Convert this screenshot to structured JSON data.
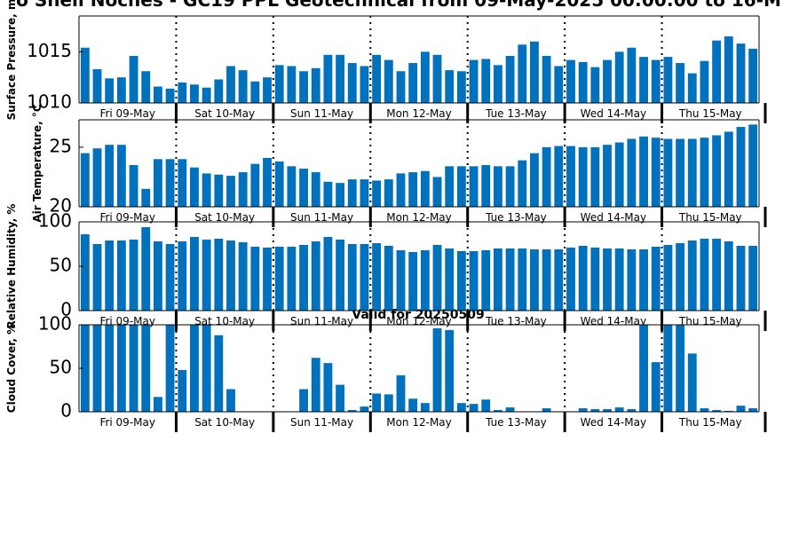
{
  "title": "o Shell Noches - GC19 PPL Geotechnical from 09-May-2025 00:00:00 to 16-M",
  "subtitle": "Valid for 20250509",
  "colors": {
    "bar": "#0072bd",
    "axis": "#000000",
    "divider": "#000000"
  },
  "day_labels": [
    "Fri 09-May",
    "Sat 10-May",
    "Sun 11-May",
    "Mon 12-May",
    "Tue 13-May",
    "Wed 14-May",
    "Thu 15-May"
  ],
  "chart_data": [
    {
      "type": "bar",
      "ylabel": "Surface Pressure, m",
      "ylim": [
        1010,
        1018.5
      ],
      "yticks": [
        1010,
        1015
      ],
      "grid": false,
      "values": [
        1015.4,
        1013.3,
        1012.4,
        1012.5,
        1014.6,
        1013.1,
        1011.6,
        1011.4,
        1012.0,
        1011.8,
        1011.5,
        1012.3,
        1013.6,
        1013.2,
        1012.1,
        1012.5,
        1013.7,
        1013.6,
        1013.1,
        1013.4,
        1014.7,
        1014.7,
        1013.9,
        1013.6,
        1014.7,
        1014.2,
        1013.1,
        1013.9,
        1015.0,
        1014.7,
        1013.2,
        1013.1,
        1014.2,
        1014.3,
        1013.7,
        1014.6,
        1015.7,
        1016.0,
        1014.6,
        1013.6,
        1014.2,
        1014.0,
        1013.5,
        1014.2,
        1015.0,
        1015.4,
        1014.5,
        1014.2,
        1014.5,
        1013.9,
        1012.9,
        1014.1,
        1016.1,
        1016.5,
        1015.8,
        1015.3
      ]
    },
    {
      "type": "bar",
      "ylabel": "Air Temperature, °C",
      "ylim": [
        20,
        27.3
      ],
      "yticks": [
        20,
        25
      ],
      "grid": false,
      "values": [
        24.5,
        24.9,
        25.2,
        25.2,
        23.5,
        21.5,
        24.0,
        24.0,
        24.0,
        23.3,
        22.8,
        22.7,
        22.6,
        22.9,
        23.6,
        24.1,
        23.8,
        23.4,
        23.2,
        22.9,
        22.1,
        22.0,
        22.3,
        22.3,
        22.2,
        22.3,
        22.8,
        22.9,
        23.0,
        22.5,
        23.4,
        23.4,
        23.4,
        23.5,
        23.4,
        23.4,
        23.9,
        24.5,
        25.0,
        25.1,
        25.1,
        25.0,
        25.0,
        25.2,
        25.4,
        25.7,
        25.9,
        25.8,
        25.7,
        25.7,
        25.7,
        25.8,
        26.0,
        26.3,
        26.7,
        26.9
      ]
    },
    {
      "type": "bar",
      "ylabel": "Relative Humidity, %",
      "ylim": [
        0,
        100
      ],
      "yticks": [
        0,
        50,
        100
      ],
      "grid": false,
      "values": [
        86,
        75,
        79,
        79,
        80,
        94,
        78,
        75,
        78,
        83,
        80,
        81,
        79,
        77,
        72,
        71,
        72,
        72,
        74,
        78,
        83,
        80,
        75,
        75,
        76,
        73,
        68,
        66,
        68,
        74,
        70,
        67,
        67,
        68,
        70,
        70,
        70,
        69,
        69,
        69,
        71,
        73,
        71,
        70,
        70,
        69,
        69,
        72,
        74,
        76,
        79,
        81,
        81,
        78,
        73,
        73
      ]
    },
    {
      "type": "bar",
      "ylabel": "Cloud Cover, %",
      "ylim": [
        0,
        100
      ],
      "yticks": [
        0,
        50,
        100
      ],
      "grid": false,
      "values": [
        100,
        100,
        100,
        100,
        100,
        100,
        17,
        100,
        48,
        100,
        100,
        88,
        26,
        0,
        0,
        0,
        0,
        0,
        26,
        62,
        56,
        31,
        2,
        6,
        21,
        20,
        42,
        15,
        10,
        96,
        94,
        10,
        9,
        14,
        2,
        5,
        0,
        0,
        4,
        0,
        0,
        4,
        3,
        3,
        5,
        3,
        100,
        57,
        100,
        100,
        67,
        4,
        2,
        1,
        7,
        4
      ]
    }
  ]
}
